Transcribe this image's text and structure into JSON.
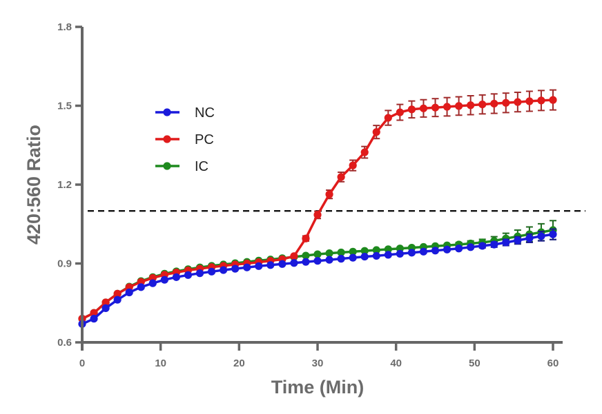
{
  "chart_data": {
    "type": "line",
    "title": "",
    "xlabel": "Time (Min)",
    "ylabel": "420:560 Ratio",
    "xlim": [
      0,
      60
    ],
    "ylim": [
      0.6,
      1.8
    ],
    "xticks": [
      0,
      10,
      20,
      30,
      40,
      50,
      60
    ],
    "xtick_labels": [
      "0",
      "10",
      "20",
      "30",
      "40",
      "50",
      "60"
    ],
    "yticks": [
      0.6,
      0.9,
      1.2,
      1.5,
      1.8
    ],
    "ytick_labels": [
      "0.6",
      "0.9",
      "1.2",
      "1.5",
      "1.8"
    ],
    "grid": false,
    "legend_position": "upper-left",
    "threshold": 1.1,
    "x": [
      0,
      1.5,
      3,
      4.5,
      6,
      7.5,
      9,
      10.5,
      12,
      13.5,
      15,
      16.5,
      18,
      19.5,
      21,
      22.5,
      24,
      25.5,
      27,
      28.5,
      30,
      31.5,
      33,
      34.5,
      36,
      37.5,
      39,
      40.5,
      42,
      43.5,
      45,
      46.5,
      48,
      49.5,
      51,
      52.5,
      54,
      55.5,
      57,
      58.5,
      60
    ],
    "series": [
      {
        "name": "NC",
        "color": "#1a1adb",
        "values": [
          0.67,
          0.69,
          0.73,
          0.762,
          0.79,
          0.81,
          0.825,
          0.838,
          0.848,
          0.856,
          0.863,
          0.869,
          0.875,
          0.88,
          0.885,
          0.89,
          0.894,
          0.898,
          0.902,
          0.906,
          0.91,
          0.914,
          0.918,
          0.922,
          0.926,
          0.929,
          0.933,
          0.937,
          0.941,
          0.945,
          0.949,
          0.953,
          0.957,
          0.962,
          0.967,
          0.972,
          0.98,
          0.988,
          0.996,
          1.004,
          1.011
        ],
        "error": [
          0.004,
          0.004,
          0.004,
          0.004,
          0.004,
          0.004,
          0.004,
          0.004,
          0.004,
          0.004,
          0.004,
          0.004,
          0.004,
          0.004,
          0.004,
          0.004,
          0.004,
          0.004,
          0.004,
          0.004,
          0.004,
          0.004,
          0.004,
          0.004,
          0.004,
          0.004,
          0.004,
          0.004,
          0.004,
          0.004,
          0.005,
          0.005,
          0.006,
          0.007,
          0.008,
          0.01,
          0.012,
          0.014,
          0.016,
          0.018,
          0.02
        ]
      },
      {
        "name": "PC",
        "color": "#e01b1b",
        "values": [
          0.69,
          0.712,
          0.752,
          0.785,
          0.81,
          0.83,
          0.845,
          0.857,
          0.866,
          0.874,
          0.88,
          0.886,
          0.891,
          0.896,
          0.9,
          0.905,
          0.91,
          0.916,
          0.928,
          0.995,
          1.085,
          1.163,
          1.229,
          1.273,
          1.323,
          1.4,
          1.454,
          1.475,
          1.486,
          1.49,
          1.493,
          1.496,
          1.499,
          1.502,
          1.505,
          1.508,
          1.511,
          1.514,
          1.517,
          1.52,
          1.522
        ],
        "error": [
          0.005,
          0.005,
          0.005,
          0.005,
          0.005,
          0.005,
          0.005,
          0.005,
          0.005,
          0.005,
          0.005,
          0.005,
          0.005,
          0.005,
          0.005,
          0.005,
          0.006,
          0.006,
          0.007,
          0.01,
          0.014,
          0.016,
          0.018,
          0.02,
          0.022,
          0.025,
          0.028,
          0.03,
          0.032,
          0.033,
          0.034,
          0.035,
          0.035,
          0.036,
          0.036,
          0.037,
          0.037,
          0.037,
          0.038,
          0.038,
          0.038
        ]
      },
      {
        "name": "IC",
        "color": "#1e8a1e",
        "values": [
          0.69,
          0.712,
          0.752,
          0.785,
          0.812,
          0.833,
          0.848,
          0.861,
          0.87,
          0.878,
          0.885,
          0.891,
          0.896,
          0.901,
          0.906,
          0.911,
          0.915,
          0.92,
          0.925,
          0.93,
          0.935,
          0.939,
          0.942,
          0.945,
          0.948,
          0.951,
          0.954,
          0.957,
          0.96,
          0.963,
          0.966,
          0.969,
          0.972,
          0.976,
          0.98,
          0.986,
          0.995,
          1.003,
          1.011,
          1.019,
          1.027
        ],
        "error": [
          0.004,
          0.004,
          0.004,
          0.004,
          0.004,
          0.004,
          0.004,
          0.004,
          0.004,
          0.004,
          0.004,
          0.004,
          0.004,
          0.004,
          0.004,
          0.004,
          0.004,
          0.004,
          0.004,
          0.004,
          0.004,
          0.004,
          0.004,
          0.004,
          0.004,
          0.004,
          0.005,
          0.005,
          0.005,
          0.006,
          0.006,
          0.007,
          0.008,
          0.01,
          0.012,
          0.016,
          0.02,
          0.024,
          0.028,
          0.032,
          0.036
        ]
      }
    ]
  }
}
